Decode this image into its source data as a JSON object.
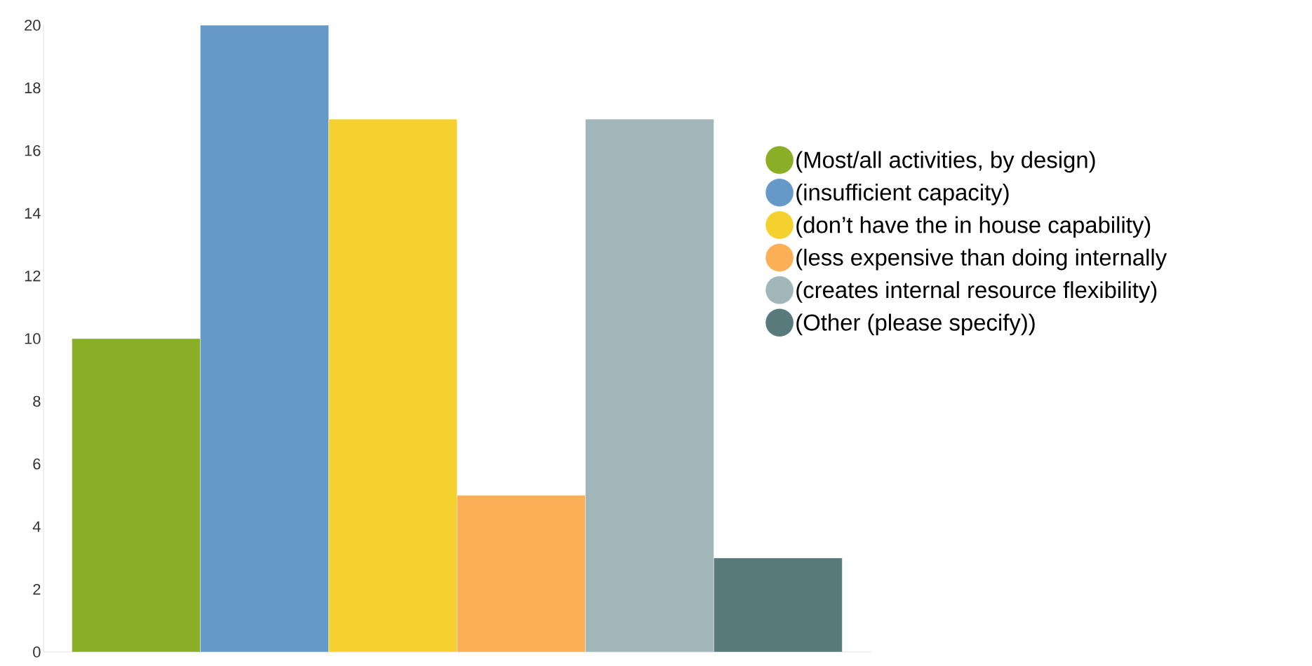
{
  "chart_data": {
    "type": "bar",
    "categories": [
      null
    ],
    "series": [
      {
        "name": "(Most/all activities, by design)",
        "color": "#8aae26",
        "values": [
          10
        ]
      },
      {
        "name": "(insufficient capacity)",
        "color": "#6699c8",
        "values": [
          20
        ]
      },
      {
        "name": "(don’t have the in house capability)",
        "color": "#f5d130",
        "values": [
          17
        ]
      },
      {
        "name": "(less expensive than doing internally",
        "color": "#fbb058",
        "values": [
          5
        ]
      },
      {
        "name": "(creates internal resource flexibility)",
        "color": "#a0b6b8",
        "values": [
          17
        ]
      },
      {
        "name": "(Other (please specify))",
        "color": "#587a7a",
        "values": [
          3
        ]
      }
    ],
    "ylim": [
      0,
      20
    ],
    "yticks": [
      0,
      2,
      4,
      6,
      8,
      10,
      12,
      14,
      16,
      18,
      20
    ],
    "grid": false,
    "legend": "right"
  }
}
